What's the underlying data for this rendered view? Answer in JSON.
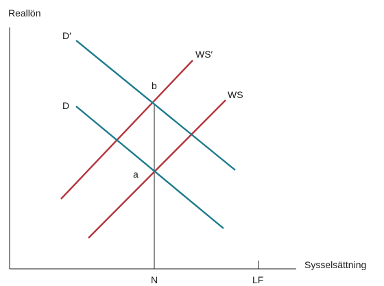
{
  "axes": {
    "y_label": "Reallön",
    "x_label": "Sysselsättning"
  },
  "curves": {
    "demand_original": "D",
    "demand_shifted": "D′",
    "wage_setting_original": "WS",
    "wage_setting_shifted": "WS′"
  },
  "points": {
    "a": "a",
    "b": "b"
  },
  "ticks": {
    "employment": "N",
    "labor_force": "LF"
  },
  "colors": {
    "demand": "#1b7a8c",
    "wage_setting": "#b5343c"
  }
}
